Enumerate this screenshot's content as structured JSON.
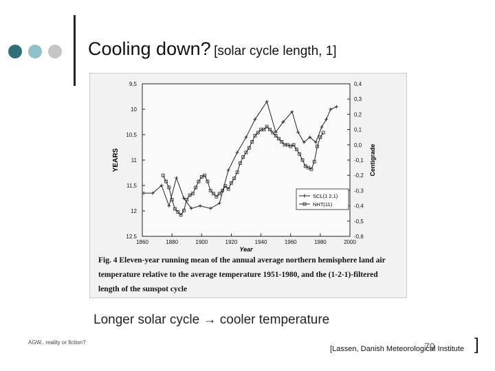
{
  "slide": {
    "title": "Cooling down?",
    "title_note": "[solar cycle length, 1]",
    "subtitle": "Longer solar cycle → cooler temperature",
    "footer_left": "AGW..  reality or fiction?",
    "page_number": "70",
    "source": "[Lassen, Danish Meteorological Institute",
    "source_bracket": "]",
    "caption": "Fig. 4  Eleven-year running mean of the annual average northern hemisphere land air temperature relative to the average temperature 1951-1980, and the (1-2-1)-filtered length of the sunspot cycle",
    "dot_colors": [
      "#2f6f77",
      "#8fc3c9",
      "#c6c6c6"
    ]
  },
  "chart_data": {
    "type": "line",
    "xlabel": "Year",
    "ylabel_left": "YEARS",
    "ylabel_right": "Centigrade",
    "x_ticks": [
      1860,
      1880,
      1900,
      1920,
      1940,
      1960,
      1980,
      2000
    ],
    "xlim": [
      1860,
      2000
    ],
    "y_left_ticks": [
      "9,5",
      "10",
      "10,5",
      "11",
      "11,5",
      "12",
      "12.5"
    ],
    "y_left_lim": [
      9.5,
      12.5
    ],
    "y_left_inverted": true,
    "y_right_ticks": [
      "0,4",
      "0,3",
      "0,2",
      "0,1",
      "0,0",
      "-0,1",
      "-0,2",
      "-0,3",
      "-0,4",
      "-0,5",
      "-0,6"
    ],
    "y_right_lim": [
      -0.6,
      0.4
    ],
    "legend": "bottom-right",
    "series": [
      {
        "name": "SCL(1 2,1)",
        "axis": "left",
        "marker": "plus",
        "x": [
          1861,
          1867,
          1873,
          1878,
          1883,
          1888,
          1893,
          1899,
          1906,
          1912,
          1918,
          1924,
          1930,
          1936,
          1944,
          1950,
          1955,
          1961,
          1965,
          1969,
          1973,
          1977,
          1981,
          1984,
          1987,
          1991
        ],
        "y": [
          11.65,
          11.65,
          11.5,
          11.9,
          11.35,
          11.75,
          11.95,
          11.9,
          11.95,
          11.85,
          11.2,
          10.85,
          10.55,
          10.2,
          9.85,
          10.45,
          10.25,
          10.05,
          10.45,
          10.65,
          10.55,
          10.65,
          10.35,
          10.2,
          10.0,
          9.95
        ]
      },
      {
        "name": "NHT(11)",
        "axis": "right",
        "marker": "square",
        "x": [
          1874,
          1876,
          1878,
          1880,
          1882,
          1884,
          1886,
          1888,
          1890,
          1892,
          1894,
          1896,
          1898,
          1900,
          1902,
          1904,
          1906,
          1908,
          1910,
          1912,
          1914,
          1916,
          1918,
          1920,
          1922,
          1924,
          1926,
          1928,
          1930,
          1932,
          1934,
          1936,
          1938,
          1940,
          1942,
          1944,
          1946,
          1948,
          1950,
          1952,
          1954,
          1956,
          1958,
          1960,
          1962,
          1964,
          1966,
          1968,
          1970,
          1972,
          1974,
          1976,
          1978,
          1980,
          1982
        ],
        "y": [
          -0.2,
          -0.24,
          -0.28,
          -0.36,
          -0.42,
          -0.44,
          -0.46,
          -0.43,
          -0.36,
          -0.33,
          -0.32,
          -0.28,
          -0.24,
          -0.21,
          -0.2,
          -0.24,
          -0.3,
          -0.32,
          -0.34,
          -0.32,
          -0.3,
          -0.27,
          -0.29,
          -0.25,
          -0.22,
          -0.18,
          -0.12,
          -0.08,
          -0.05,
          -0.02,
          0.02,
          0.06,
          0.08,
          0.1,
          0.1,
          0.12,
          0.1,
          0.08,
          0.06,
          0.04,
          0.02,
          0.0,
          0.0,
          -0.01,
          0.0,
          -0.03,
          -0.06,
          -0.1,
          -0.14,
          -0.15,
          -0.16,
          -0.11,
          -0.01,
          0.05,
          0.08
        ]
      }
    ]
  }
}
